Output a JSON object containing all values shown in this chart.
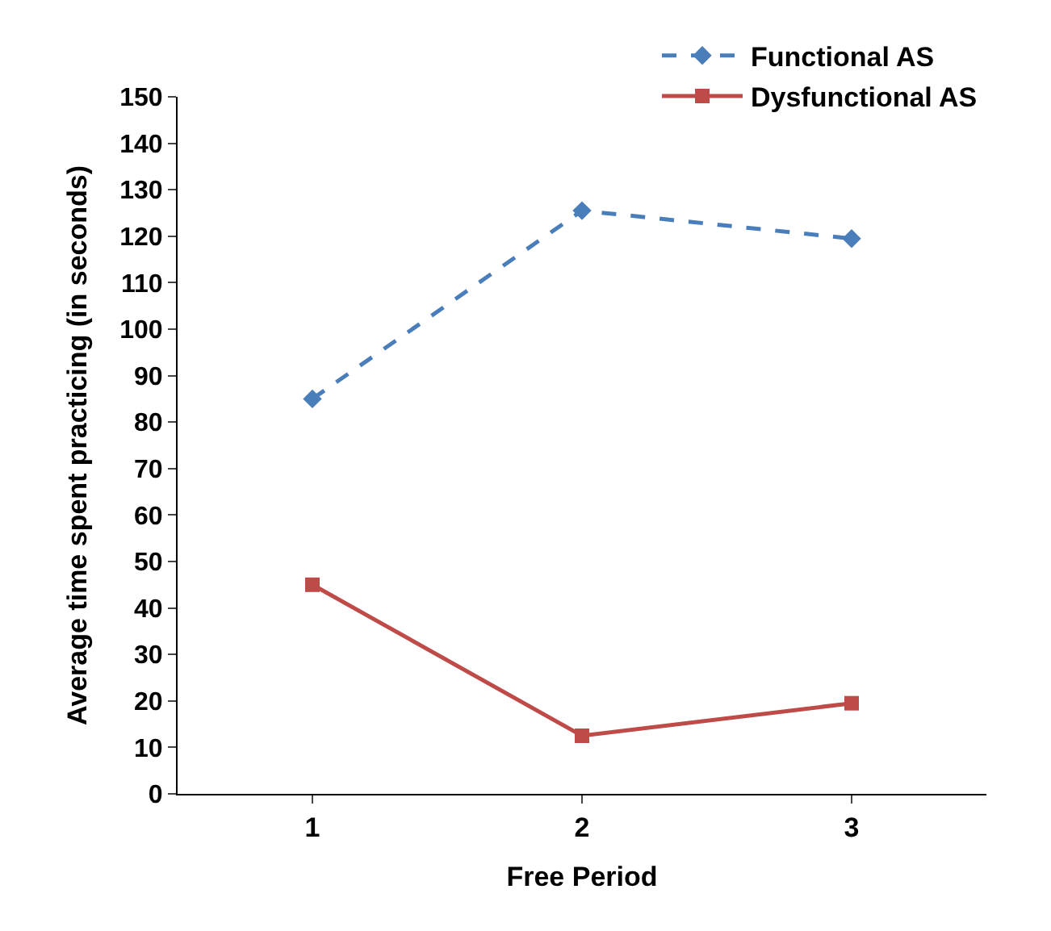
{
  "chart_data": {
    "type": "line",
    "xlabel": "Free Period",
    "ylabel": "Average time spent practicing (in seconds)",
    "categories": [
      "1",
      "2",
      "3"
    ],
    "series": [
      {
        "name": "Functional AS",
        "color": "#4a7ebb",
        "values": [
          85,
          125.5,
          119.5
        ],
        "marker": "diamond",
        "line_style": "dashed"
      },
      {
        "name": "Dysfunctional AS",
        "color": "#be4b48",
        "values": [
          45,
          12.5,
          19.5
        ],
        "marker": "square",
        "line_style": "solid"
      }
    ],
    "ylim": [
      0,
      150
    ],
    "yticks": [
      0,
      10,
      20,
      30,
      40,
      50,
      60,
      70,
      80,
      90,
      100,
      110,
      120,
      130,
      140,
      150
    ],
    "legend": "top right"
  }
}
